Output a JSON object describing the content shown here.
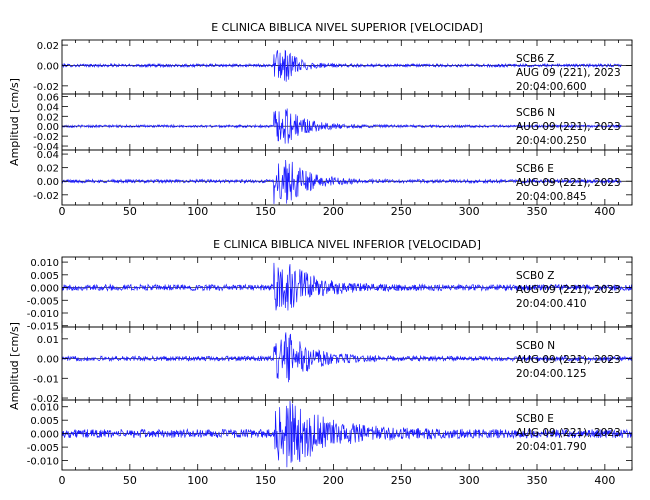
{
  "chart_data": [
    {
      "type": "line",
      "title": "E CLINICA BIBLICA NIVEL SUPERIOR [VELOCIDAD]",
      "ylabel": "Amplitud [cm/s]",
      "xlabel": "",
      "xlim": [
        0,
        420
      ],
      "xticks": [
        0,
        50,
        100,
        150,
        200,
        250,
        300,
        350,
        400
      ],
      "grid": false,
      "panels": [
        {
          "station": "SCB6 Z",
          "date": "AUG 09 (221), 2023",
          "time": "20:04:00.600",
          "ylim": [
            -0.028,
            0.025
          ],
          "yticks": [
            0.02,
            0.0,
            -0.02
          ],
          "ytick_labels": [
            "0.02",
            "0.00",
            "-0.02"
          ],
          "series": {
            "x_range": [
              0,
              412
            ],
            "onset": 156,
            "noise_amp": 0.0015,
            "peak_amp": 0.018,
            "decay": 0.09
          }
        },
        {
          "station": "SCB6 N",
          "date": "AUG 09 (221), 2023",
          "time": "20:04:00.250",
          "ylim": [
            -0.048,
            0.065
          ],
          "yticks": [
            0.06,
            0.04,
            0.02,
            0.0,
            -0.02,
            -0.04
          ],
          "ytick_labels": [
            "0.06",
            "0.04",
            "0.02",
            "0.00",
            "-0.02",
            "-0.04"
          ],
          "series": {
            "x_range": [
              0,
              412
            ],
            "onset": 156,
            "noise_amp": 0.0025,
            "peak_amp": 0.035,
            "decay": 0.06
          }
        },
        {
          "station": "SCB6 E",
          "date": "AUG 09 (221), 2023",
          "time": "20:04:00.845",
          "ylim": [
            -0.035,
            0.046
          ],
          "yticks": [
            0.04,
            0.02,
            0.0,
            -0.02
          ],
          "ytick_labels": [
            "0.04",
            "0.02",
            "0.00",
            "-0.02"
          ],
          "series": {
            "x_range": [
              0,
              412
            ],
            "onset": 156,
            "noise_amp": 0.0025,
            "peak_amp": 0.032,
            "decay": 0.055
          }
        }
      ]
    },
    {
      "type": "line",
      "title": "E CLINICA BIBLICA NIVEL INFERIOR [VELOCIDAD]",
      "ylabel": "Amplitud [cm/s]",
      "xlabel": "",
      "xlim": [
        0,
        420
      ],
      "xticks": [
        0,
        50,
        100,
        150,
        200,
        250,
        300,
        350,
        400
      ],
      "grid": false,
      "panels": [
        {
          "station": "SCB0 Z",
          "date": "AUG 09 (221), 2023",
          "time": "20:04:00.410",
          "ylim": [
            -0.0155,
            0.012
          ],
          "yticks": [
            0.01,
            0.005,
            0.0,
            -0.005,
            -0.01,
            -0.015
          ],
          "ytick_labels": [
            "0.010",
            "0.005",
            "0.000",
            "-0.005",
            "-0.010",
            "-0.015"
          ],
          "series": {
            "x_range": [
              0,
              420
            ],
            "onset": 156,
            "noise_amp": 0.0012,
            "peak_amp": 0.009,
            "decay": 0.045
          }
        },
        {
          "station": "SCB0 N",
          "date": "AUG 09 (221), 2023",
          "time": "20:04:00.125",
          "ylim": [
            -0.021,
            0.016
          ],
          "yticks": [
            0.01,
            0.0,
            -0.01,
            -0.02
          ],
          "ytick_labels": [
            "0.01",
            "0.00",
            "-0.01",
            "-0.02"
          ],
          "series": {
            "x_range": [
              0,
              420
            ],
            "onset": 156,
            "noise_amp": 0.0012,
            "peak_amp": 0.012,
            "decay": 0.05
          }
        },
        {
          "station": "SCB0 E",
          "date": "AUG 09 (221), 2023",
          "time": "20:04:01.790",
          "ylim": [
            -0.0135,
            0.0125
          ],
          "yticks": [
            0.01,
            0.005,
            0.0,
            -0.005,
            -0.01
          ],
          "ytick_labels": [
            "0.010",
            "0.005",
            "0.000",
            "-0.005",
            "-0.010"
          ],
          "series": {
            "x_range": [
              0,
              420
            ],
            "onset": 156,
            "noise_amp": 0.0016,
            "peak_amp": 0.01,
            "decay": 0.03
          }
        }
      ]
    }
  ]
}
